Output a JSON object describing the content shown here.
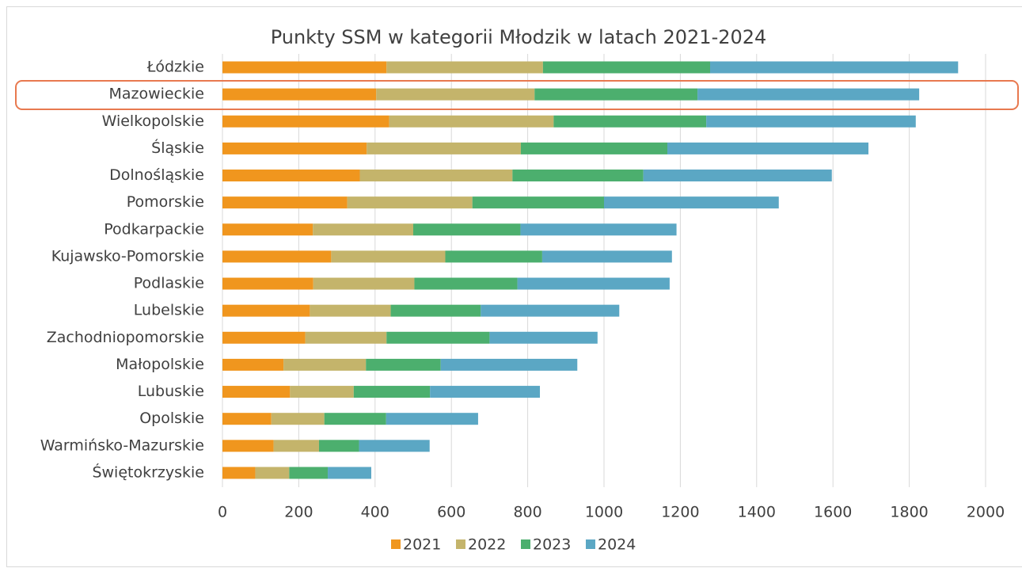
{
  "chart_data": {
    "type": "bar",
    "orientation": "horizontal",
    "stacked": true,
    "title": "Punkty SSM w kategorii Młodzik w latach 2021-2024",
    "categories": [
      "Łódzkie",
      "Mazowieckie",
      "Wielkopolskie",
      "Śląskie",
      "Dolnośląskie",
      "Pomorskie",
      "Podkarpackie",
      "Kujawsko-Pomorskie",
      "Podlaskie",
      "Lubelskie",
      "Zachodniopomorskie",
      "Małopolskie",
      "Lubuskie",
      "Opolskie",
      "Warmińsko-Mazurskie",
      "Świętokrzyskie"
    ],
    "series": [
      {
        "name": "2021",
        "color": "#f0961e",
        "values": [
          430,
          403,
          437,
          378,
          360,
          327,
          237,
          285,
          238,
          229,
          217,
          160,
          177,
          128,
          134,
          86
        ]
      },
      {
        "name": "2022",
        "color": "#c4b46b",
        "values": [
          410,
          415,
          431,
          404,
          400,
          328,
          263,
          299,
          265,
          212,
          213,
          216,
          167,
          139,
          119,
          89
        ]
      },
      {
        "name": "2023",
        "color": "#4caf6e",
        "values": [
          438,
          427,
          400,
          384,
          343,
          345,
          281,
          254,
          270,
          236,
          270,
          196,
          200,
          162,
          105,
          101
        ]
      },
      {
        "name": "2024",
        "color": "#5ba7c4",
        "values": [
          650,
          581,
          549,
          527,
          494,
          458,
          409,
          340,
          399,
          363,
          283,
          358,
          288,
          241,
          185,
          114
        ]
      }
    ],
    "xlim": [
      0,
      2000
    ],
    "xticks": [
      0,
      200,
      400,
      600,
      800,
      1000,
      1200,
      1400,
      1600,
      1800,
      2000
    ],
    "grid": true,
    "legend": "bottom"
  }
}
